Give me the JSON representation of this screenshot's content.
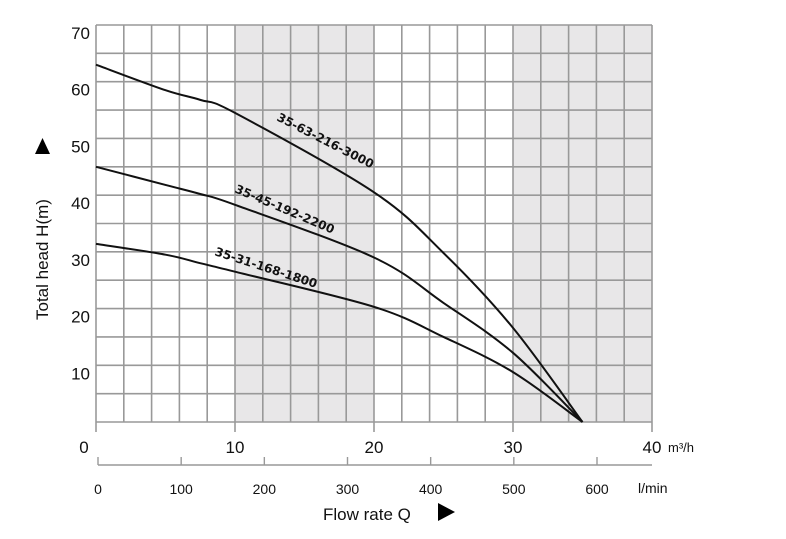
{
  "chart_data": {
    "type": "line",
    "ylabel": "Total head H(m)",
    "xlabel": "Flow rate Q",
    "x_unit_primary": "m³/h",
    "x_unit_secondary": "l/min",
    "ylim": [
      0,
      70
    ],
    "xlim": [
      0,
      40
    ],
    "secondary_xlim": [
      0,
      666.7
    ],
    "y_ticks": [
      "10",
      "20",
      "30",
      "40",
      "50",
      "60",
      "70"
    ],
    "x_ticks": [
      "0",
      "10",
      "20",
      "30",
      "40"
    ],
    "secondary_x_ticks": [
      "0",
      "100",
      "200",
      "300",
      "400",
      "500",
      "600"
    ],
    "grid": true,
    "shaded_x_bands": [
      [
        10,
        20
      ],
      [
        30,
        40
      ]
    ],
    "colors": {
      "grid": "#999999",
      "band": "#e8e7e8",
      "curve": "#111111"
    },
    "series": [
      {
        "name": "35-63-216-3000",
        "x": [
          0,
          5,
          7.5,
          10,
          20,
          25,
          30,
          35
        ],
        "y": [
          63,
          58.5,
          56.8,
          54.5,
          40.5,
          29.8,
          16.6,
          0
        ]
      },
      {
        "name": "35-45-192-2200",
        "x": [
          0,
          5,
          7.5,
          10,
          20,
          25,
          30,
          35
        ],
        "y": [
          45,
          41.8,
          40.2,
          38.3,
          29,
          21,
          12.2,
          0
        ]
      },
      {
        "name": "35-31-168-1800",
        "x": [
          0,
          5,
          7.5,
          10,
          20,
          25,
          30,
          35
        ],
        "y": [
          31.4,
          29.5,
          28,
          26.5,
          20.3,
          15,
          8.8,
          0
        ]
      }
    ]
  }
}
